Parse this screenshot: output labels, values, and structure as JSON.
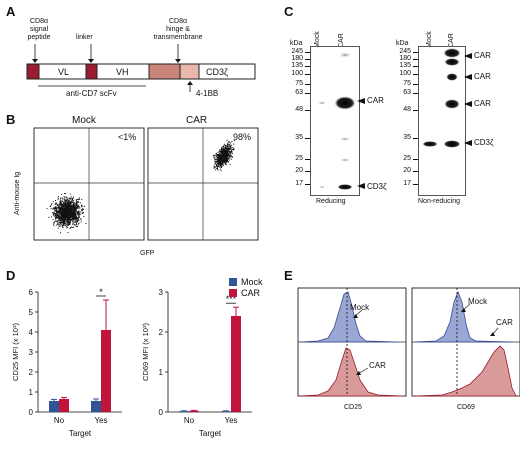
{
  "panels": {
    "a": {
      "label": "A",
      "annotations": {
        "signal": [
          "CD8α",
          "signal",
          "peptide"
        ],
        "linker": "linker",
        "hinge": [
          "CD8α",
          "hinge &",
          "transmembrane"
        ],
        "bb": "4-1BB"
      },
      "segments": {
        "vl": "VL",
        "vh": "VH",
        "cd3z": "CD3ζ"
      },
      "scfv": "anti-CD7 scFv",
      "colors": {
        "signal": "#9b1b30",
        "hinge": "#c98579",
        "bb": "#e8b8ad"
      }
    },
    "b": {
      "label": "B",
      "titles": [
        "Mock",
        "CAR"
      ],
      "percents": [
        "<1%",
        "98%"
      ],
      "ylabel": "Anti-mouse Ig",
      "xlabel": "GFP"
    },
    "c": {
      "label": "C",
      "kda": "kDa",
      "reducing": {
        "lanes": [
          "Mock",
          "CAR"
        ],
        "markers": [
          "245",
          "180",
          "135",
          "100",
          "75",
          "63",
          "48",
          "35",
          "25",
          "20",
          "17"
        ],
        "arrows": [
          "CAR",
          "CD3ζ"
        ],
        "caption": "Reducing"
      },
      "nonreducing": {
        "lanes": [
          "Mock",
          "CAR"
        ],
        "markers": [
          "245",
          "180",
          "135",
          "100",
          "75",
          "63",
          "48",
          "35",
          "25",
          "20",
          "17"
        ],
        "arrows": [
          "CAR",
          "CAR",
          "CAR",
          "CD3ζ"
        ],
        "caption": "Non-reducing"
      }
    },
    "d": {
      "label": "D",
      "legend": [
        {
          "name": "Mock",
          "color": "#2f5597"
        },
        {
          "name": "CAR",
          "color": "#c0143c"
        }
      ]
    },
    "e": {
      "label": "E",
      "plots": [
        {
          "xlabel": "CD25",
          "top": "Mock",
          "bottom": "CAR"
        },
        {
          "xlabel": "CD69",
          "top": "Mock",
          "bottom": "CAR"
        }
      ]
    }
  },
  "chart_data": [
    {
      "type": "bar",
      "categories": [
        "No",
        "Yes"
      ],
      "xlabel": "Target",
      "ylabel": "CD25 MFI (x 10³)",
      "yticks": [
        "0",
        "1",
        "2",
        "3",
        "4",
        "5",
        "6"
      ],
      "ylim": [
        0,
        6
      ],
      "significance": "*",
      "series": [
        {
          "name": "Mock",
          "values": [
            0.55,
            0.55
          ],
          "errors": [
            0.08,
            0.1
          ]
        },
        {
          "name": "CAR",
          "values": [
            0.65,
            4.1
          ],
          "errors": [
            0.08,
            1.5
          ]
        }
      ]
    },
    {
      "type": "bar",
      "categories": [
        "No",
        "Yes"
      ],
      "xlabel": "Target",
      "ylabel": "CD69 MFI (x 10³)",
      "yticks": [
        "0",
        "1",
        "2",
        "3"
      ],
      "ylim": [
        0,
        3
      ],
      "significance": "***",
      "series": [
        {
          "name": "Mock",
          "values": [
            0.02,
            0.02
          ],
          "errors": [
            0.01,
            0.01
          ]
        },
        {
          "name": "CAR",
          "values": [
            0.03,
            2.4
          ],
          "errors": [
            0.01,
            0.22
          ]
        }
      ]
    }
  ]
}
